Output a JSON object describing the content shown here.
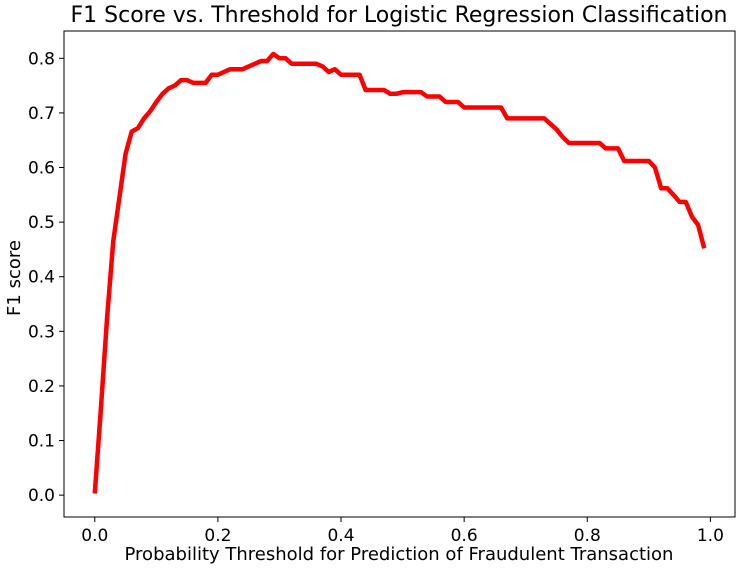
{
  "chart_data": {
    "type": "line",
    "title": "F1 Score vs. Threshold for Logistic Regression Classification",
    "xlabel": "Probability Threshold for Prediction of Fraudulent Transaction",
    "ylabel": "F1 score",
    "xlim": [
      -0.05,
      1.04
    ],
    "ylim": [
      -0.04,
      0.85
    ],
    "xticks": [
      0.0,
      0.2,
      0.4,
      0.6,
      0.8,
      1.0
    ],
    "xtick_labels": [
      "0.0",
      "0.2",
      "0.4",
      "0.6",
      "0.8",
      "1.0"
    ],
    "yticks": [
      0.0,
      0.1,
      0.2,
      0.3,
      0.4,
      0.5,
      0.6,
      0.7,
      0.8
    ],
    "ytick_labels": [
      "0.0",
      "0.1",
      "0.2",
      "0.3",
      "0.4",
      "0.5",
      "0.6",
      "0.7",
      "0.8"
    ],
    "grid": false,
    "legend": null,
    "series": [
      {
        "color": "#ff0000",
        "x": [
          0.0,
          0.01,
          0.02,
          0.03,
          0.04,
          0.05,
          0.06,
          0.07,
          0.08,
          0.09,
          0.1,
          0.11,
          0.12,
          0.13,
          0.14,
          0.15,
          0.16,
          0.17,
          0.18,
          0.19,
          0.2,
          0.21,
          0.22,
          0.23,
          0.24,
          0.25,
          0.26,
          0.27,
          0.28,
          0.29,
          0.3,
          0.31,
          0.32,
          0.33,
          0.34,
          0.35,
          0.36,
          0.37,
          0.38,
          0.39,
          0.4,
          0.41,
          0.42,
          0.43,
          0.44,
          0.45,
          0.46,
          0.47,
          0.48,
          0.49,
          0.5,
          0.51,
          0.52,
          0.53,
          0.54,
          0.55,
          0.56,
          0.57,
          0.58,
          0.59,
          0.6,
          0.61,
          0.62,
          0.63,
          0.64,
          0.65,
          0.66,
          0.67,
          0.68,
          0.69,
          0.7,
          0.71,
          0.72,
          0.73,
          0.74,
          0.75,
          0.76,
          0.77,
          0.78,
          0.79,
          0.8,
          0.81,
          0.82,
          0.83,
          0.84,
          0.85,
          0.86,
          0.87,
          0.88,
          0.89,
          0.9,
          0.91,
          0.92,
          0.93,
          0.94,
          0.95,
          0.96,
          0.97,
          0.98,
          0.99
        ],
        "y": [
          0.003,
          0.16,
          0.325,
          0.465,
          0.545,
          0.625,
          0.666,
          0.672,
          0.69,
          0.703,
          0.72,
          0.735,
          0.745,
          0.75,
          0.76,
          0.76,
          0.755,
          0.755,
          0.755,
          0.77,
          0.77,
          0.775,
          0.78,
          0.78,
          0.78,
          0.785,
          0.79,
          0.795,
          0.795,
          0.808,
          0.8,
          0.8,
          0.79,
          0.79,
          0.79,
          0.79,
          0.79,
          0.785,
          0.775,
          0.78,
          0.77,
          0.77,
          0.77,
          0.77,
          0.742,
          0.742,
          0.742,
          0.742,
          0.735,
          0.735,
          0.738,
          0.738,
          0.738,
          0.738,
          0.73,
          0.73,
          0.73,
          0.72,
          0.72,
          0.72,
          0.71,
          0.71,
          0.71,
          0.71,
          0.71,
          0.71,
          0.71,
          0.69,
          0.69,
          0.69,
          0.69,
          0.69,
          0.69,
          0.69,
          0.68,
          0.67,
          0.656,
          0.645,
          0.645,
          0.645,
          0.645,
          0.645,
          0.645,
          0.635,
          0.635,
          0.635,
          0.612,
          0.612,
          0.612,
          0.612,
          0.612,
          0.6,
          0.562,
          0.562,
          0.55,
          0.537,
          0.537,
          0.51,
          0.495,
          0.452
        ]
      }
    ]
  }
}
